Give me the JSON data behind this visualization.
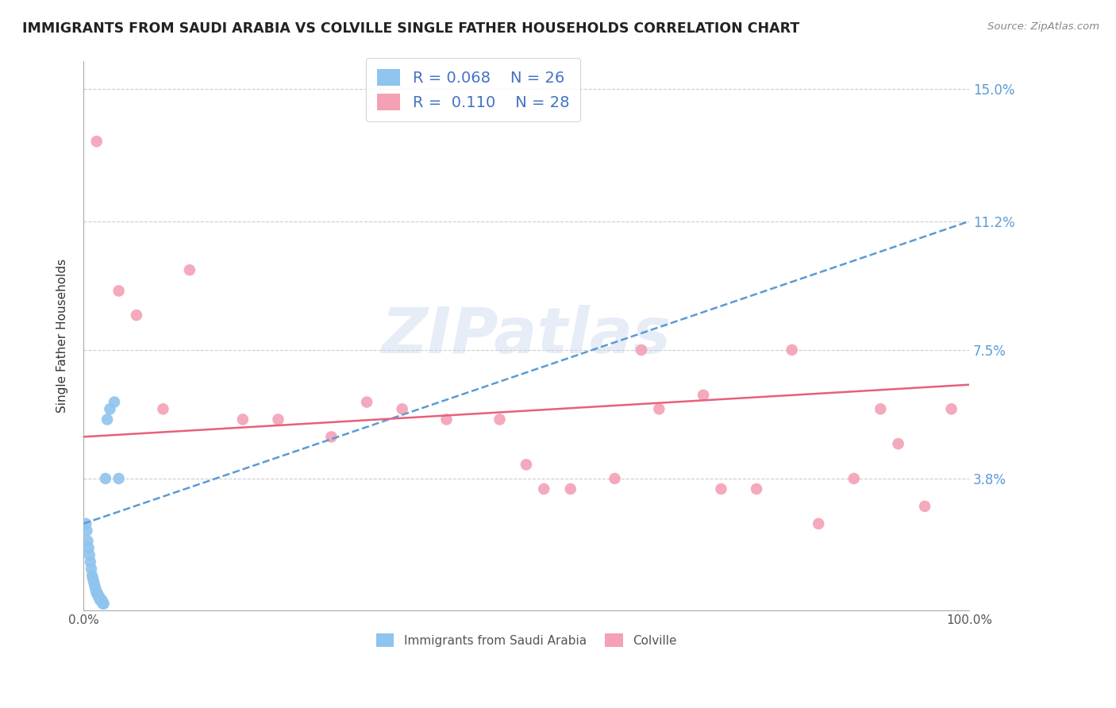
{
  "title": "IMMIGRANTS FROM SAUDI ARABIA VS COLVILLE SINGLE FATHER HOUSEHOLDS CORRELATION CHART",
  "source": "Source: ZipAtlas.com",
  "xlabel": "",
  "ylabel": "Single Father Households",
  "xlim": [
    0,
    100
  ],
  "ylim": [
    0,
    15.8
  ],
  "yticks": [
    0,
    3.8,
    7.5,
    11.2,
    15.0
  ],
  "xtick_labels": [
    "0.0%",
    "100.0%"
  ],
  "ytick_labels": [
    "",
    "3.8%",
    "7.5%",
    "11.2%",
    "15.0%"
  ],
  "series1_label": "Immigrants from Saudi Arabia",
  "series1_R": "0.068",
  "series1_N": "26",
  "series1_color": "#8EC4EE",
  "series1_line_color": "#5B9BD5",
  "series2_label": "Colville",
  "series2_R": "0.110",
  "series2_N": "28",
  "series2_color": "#F4A0B5",
  "series2_line_color": "#E8607A",
  "watermark": "ZIPatlas",
  "watermark_color_zip": "#D0DCF0",
  "watermark_color_atlas": "#C0D8E8",
  "background_color": "#FFFFFF",
  "series1_x": [
    0.3,
    0.4,
    0.5,
    0.6,
    0.7,
    0.8,
    0.9,
    1.0,
    1.1,
    1.2,
    1.3,
    1.4,
    1.5,
    1.6,
    1.7,
    1.8,
    1.9,
    2.0,
    2.1,
    2.2,
    2.3,
    2.5,
    2.7,
    3.0,
    3.5,
    4.0
  ],
  "series1_y": [
    2.5,
    2.3,
    2.0,
    1.8,
    1.6,
    1.4,
    1.2,
    1.0,
    0.9,
    0.8,
    0.7,
    0.6,
    0.5,
    0.5,
    0.4,
    0.4,
    0.3,
    0.3,
    0.3,
    0.2,
    0.2,
    3.8,
    5.5,
    5.8,
    6.0,
    3.8
  ],
  "series2_x": [
    1.5,
    4.0,
    6.0,
    9.0,
    12.0,
    18.0,
    22.0,
    28.0,
    32.0,
    36.0,
    41.0,
    47.0,
    50.0,
    52.0,
    55.0,
    60.0,
    63.0,
    65.0,
    70.0,
    72.0,
    76.0,
    80.0,
    83.0,
    87.0,
    90.0,
    92.0,
    95.0,
    98.0
  ],
  "series2_y": [
    13.5,
    9.2,
    8.5,
    5.8,
    9.8,
    5.5,
    5.5,
    5.0,
    6.0,
    5.8,
    5.5,
    5.5,
    4.2,
    3.5,
    3.5,
    3.8,
    7.5,
    5.8,
    6.2,
    3.5,
    3.5,
    7.5,
    2.5,
    3.8,
    5.8,
    4.8,
    3.0,
    5.8
  ],
  "trend1_x0": 0,
  "trend1_y0": 2.5,
  "trend1_x1": 100,
  "trend1_y1": 11.2,
  "trend2_x0": 0,
  "trend2_y0": 5.0,
  "trend2_x1": 100,
  "trend2_y1": 6.5
}
